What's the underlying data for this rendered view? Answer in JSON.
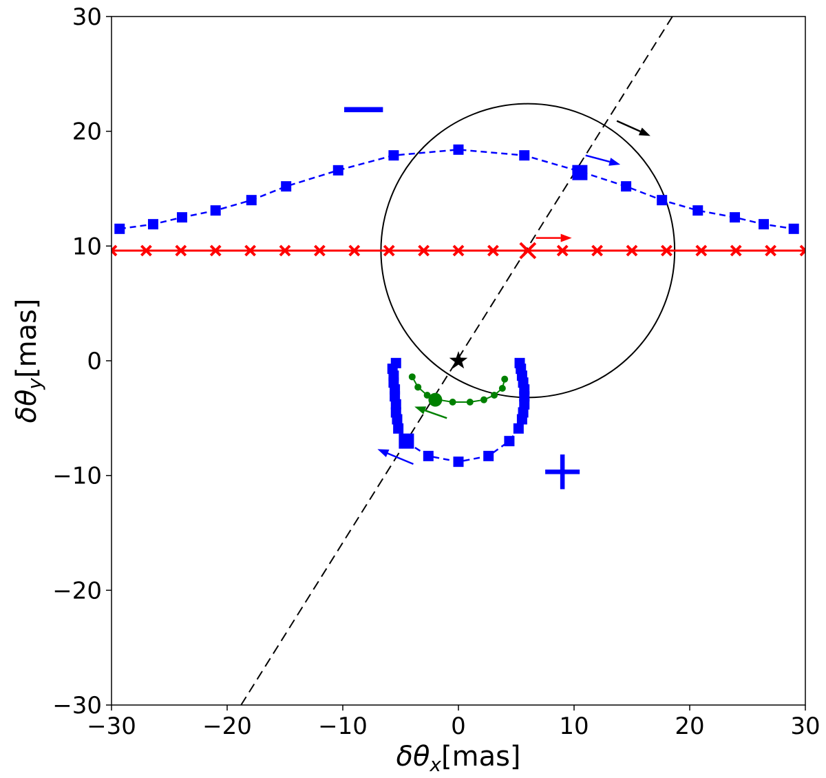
{
  "chart_data": {
    "type": "scatter",
    "title": "",
    "xlabel_symbol": "δθ",
    "xlabel_sub": "x",
    "xlabel_unit": "[mas]",
    "ylabel_symbol": "δθ",
    "ylabel_sub": "y",
    "ylabel_unit": "[mas]",
    "xlim": [
      -30,
      30
    ],
    "ylim": [
      -30,
      30
    ],
    "xticks": [
      -30,
      -20,
      -10,
      0,
      10,
      20,
      30
    ],
    "yticks": [
      -30,
      -20,
      -10,
      0,
      10,
      20,
      30
    ],
    "tick_labels_x": [
      "−30",
      "−20",
      "−10",
      "0",
      "10",
      "20",
      "30"
    ],
    "tick_labels_y": [
      "−30",
      "−20",
      "−10",
      "0",
      "10",
      "20",
      "30"
    ],
    "grid": false,
    "colors": {
      "red": "#ff0000",
      "blue": "#0000ff",
      "green": "#008000",
      "black": "#000000"
    },
    "lens_star": {
      "x": 0,
      "y": 0,
      "marker": "star"
    },
    "einstein_circle": {
      "cx": 6,
      "cy": 9.6,
      "r": 12.7
    },
    "lens_axis": {
      "points": [
        [
          -18.8,
          -30
        ],
        [
          18.5,
          30
        ]
      ]
    },
    "source_track": {
      "color": "#ff0000",
      "y": 9.6,
      "x": [
        -30,
        -27,
        -24,
        -21,
        -18,
        -15,
        -12,
        -9,
        -6,
        -3,
        0,
        3,
        6,
        9,
        12,
        15,
        18,
        21,
        24,
        27,
        30
      ],
      "highlight": {
        "x": 6,
        "y": 9.6
      },
      "arrow": {
        "from": [
          6.7,
          10.7
        ],
        "to": [
          9.8,
          10.7
        ]
      }
    },
    "major_image": {
      "color": "#0000ff",
      "points": [
        [
          -29.3,
          11.5
        ],
        [
          -26.4,
          11.9
        ],
        [
          -23.9,
          12.5
        ],
        [
          -21.0,
          13.1
        ],
        [
          -17.9,
          14.0
        ],
        [
          -14.9,
          15.2
        ],
        [
          -10.4,
          16.6
        ],
        [
          -5.6,
          17.9
        ],
        [
          0.0,
          18.4
        ],
        [
          5.7,
          17.9
        ],
        [
          10.5,
          16.5
        ],
        [
          14.5,
          15.2
        ],
        [
          17.6,
          14.0
        ],
        [
          20.7,
          13.1
        ],
        [
          23.9,
          12.5
        ],
        [
          26.4,
          11.9
        ],
        [
          29.0,
          11.5
        ]
      ],
      "highlight": {
        "x": 10.5,
        "y": 16.4
      },
      "arrow": {
        "from": [
          11.0,
          17.9
        ],
        "to": [
          14.0,
          17.1
        ]
      },
      "sign_label": "−"
    },
    "minor_image": {
      "color": "#0000ff",
      "points": [
        [
          -5.4,
          -0.2
        ],
        [
          -5.7,
          -0.7
        ],
        [
          -5.6,
          -1.3
        ],
        [
          -5.6,
          -1.9
        ],
        [
          -5.5,
          -2.5
        ],
        [
          -5.5,
          -3.1
        ],
        [
          -5.4,
          -3.8
        ],
        [
          -5.4,
          -4.5
        ],
        [
          -5.3,
          -5.1
        ],
        [
          -5.2,
          -5.9
        ],
        [
          -4.5,
          -7.1
        ],
        [
          -2.6,
          -8.3
        ],
        [
          0.0,
          -8.8
        ],
        [
          2.6,
          -8.3
        ],
        [
          4.4,
          -7.0
        ],
        [
          5.2,
          -5.9
        ],
        [
          5.5,
          -5.1
        ],
        [
          5.6,
          -4.5
        ],
        [
          5.7,
          -3.8
        ],
        [
          5.7,
          -3.1
        ],
        [
          5.7,
          -2.5
        ],
        [
          5.6,
          -1.9
        ],
        [
          5.5,
          -1.3
        ],
        [
          5.4,
          -0.7
        ],
        [
          5.3,
          -0.2
        ]
      ],
      "highlight": {
        "x": -4.5,
        "y": -7.0
      },
      "arrow": {
        "from": [
          -3.9,
          -9.0
        ],
        "to": [
          -7.0,
          -7.7
        ]
      },
      "sign_label": "+"
    },
    "centroid_track": {
      "color": "#008000",
      "points": [
        [
          -4.0,
          -1.4
        ],
        [
          -3.5,
          -2.3
        ],
        [
          -2.7,
          -3.0
        ],
        [
          -1.7,
          -3.4
        ],
        [
          -0.5,
          -3.6
        ],
        [
          1.0,
          -3.6
        ],
        [
          2.2,
          -3.4
        ],
        [
          3.1,
          -3.0
        ],
        [
          3.8,
          -2.4
        ],
        [
          4.0,
          -1.6
        ]
      ],
      "highlight": {
        "x": -2.0,
        "y": -3.4
      },
      "arrow": {
        "from": [
          -1.0,
          -5.0
        ],
        "to": [
          -3.8,
          -4.0
        ]
      }
    },
    "black_arrow": {
      "from": [
        13.7,
        20.9
      ],
      "to": [
        16.6,
        19.6
      ]
    }
  }
}
